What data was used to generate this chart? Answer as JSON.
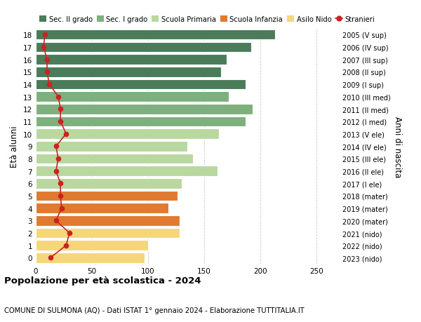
{
  "ages": [
    18,
    17,
    16,
    15,
    14,
    13,
    12,
    11,
    10,
    9,
    8,
    7,
    6,
    5,
    4,
    3,
    2,
    1,
    0
  ],
  "bar_values": [
    213,
    192,
    170,
    165,
    187,
    172,
    193,
    187,
    163,
    135,
    140,
    162,
    130,
    126,
    118,
    128,
    128,
    100,
    97
  ],
  "stranieri": [
    8,
    7,
    10,
    10,
    12,
    20,
    22,
    22,
    27,
    18,
    20,
    18,
    22,
    22,
    23,
    18,
    30,
    27,
    13
  ],
  "bar_colors": [
    "#4a7c59",
    "#4a7c59",
    "#4a7c59",
    "#4a7c59",
    "#4a7c59",
    "#7db07d",
    "#7db07d",
    "#7db07d",
    "#b8d8a0",
    "#b8d8a0",
    "#b8d8a0",
    "#b8d8a0",
    "#b8d8a0",
    "#e07a30",
    "#e07a30",
    "#e07a30",
    "#f5d77a",
    "#f5d77a",
    "#f5d77a"
  ],
  "right_labels": [
    "2005 (V sup)",
    "2006 (IV sup)",
    "2007 (III sup)",
    "2008 (II sup)",
    "2009 (I sup)",
    "2010 (III med)",
    "2011 (II med)",
    "2012 (I med)",
    "2013 (V ele)",
    "2014 (IV ele)",
    "2015 (III ele)",
    "2016 (II ele)",
    "2017 (I ele)",
    "2018 (mater)",
    "2019 (mater)",
    "2020 (mater)",
    "2021 (nido)",
    "2022 (nido)",
    "2023 (nido)"
  ],
  "legend_labels": [
    "Sec. II grado",
    "Sec. I grado",
    "Scuola Primaria",
    "Scuola Infanzia",
    "Asilo Nido",
    "Stranieri"
  ],
  "legend_colors": [
    "#4a7c59",
    "#7db07d",
    "#b8d8a0",
    "#e07a30",
    "#f5d77a",
    "#cc2222"
  ],
  "ylabel": "Età alunni",
  "ylabel2": "Anni di nascita",
  "title": "Popolazione per età scolastica - 2024",
  "subtitle": "COMUNE DI SULMONA (AQ) - Dati ISTAT 1° gennaio 2024 - Elaborazione TUTTITALIA.IT",
  "xlim": [
    0,
    270
  ],
  "xticks": [
    0,
    50,
    100,
    150,
    200,
    250
  ],
  "background_color": "#ffffff",
  "grid_color": "#cccccc",
  "stranieri_color": "#cc2222",
  "bar_height": 0.82
}
